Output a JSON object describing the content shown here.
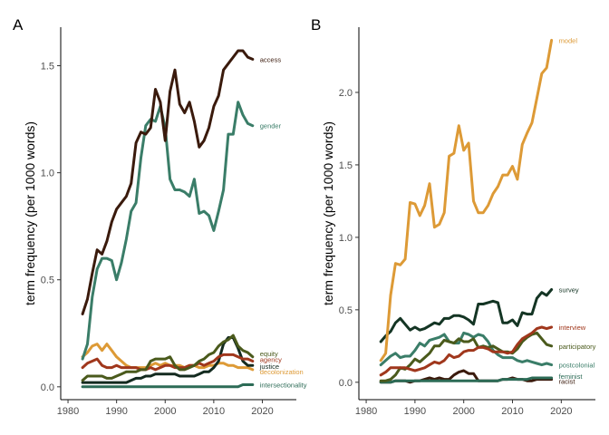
{
  "chart_data": [
    {
      "type": "line",
      "panel_label": "A",
      "xlabel": "",
      "ylabel": "term frequency (per 1000 words)",
      "xlim": [
        1978.5,
        2027
      ],
      "ylim": [
        -0.06,
        1.68
      ],
      "x_ticks": [
        1980,
        1990,
        2000,
        2010,
        2020
      ],
      "y_ticks": [
        0.0,
        0.5,
        1.0,
        1.5
      ],
      "y_tick_labels": [
        "0.0",
        "0.5",
        "1.0",
        "1.5"
      ],
      "grid": false,
      "legend": "direct labels at line ends",
      "x": [
        1983,
        1984,
        1985,
        1986,
        1987,
        1988,
        1989,
        1990,
        1991,
        1992,
        1993,
        1994,
        1995,
        1996,
        1997,
        1998,
        1999,
        2000,
        2001,
        2002,
        2003,
        2004,
        2005,
        2006,
        2007,
        2008,
        2009,
        2010,
        2011,
        2012,
        2013,
        2014,
        2015,
        2016,
        2017,
        2018
      ],
      "series": [
        {
          "name": "access",
          "color": "#3a1a0c",
          "values": [
            0.34,
            0.41,
            0.53,
            0.64,
            0.62,
            0.68,
            0.77,
            0.83,
            0.86,
            0.89,
            0.95,
            1.14,
            1.19,
            1.18,
            1.21,
            1.39,
            1.33,
            1.15,
            1.38,
            1.48,
            1.32,
            1.28,
            1.33,
            1.24,
            1.12,
            1.15,
            1.21,
            1.31,
            1.36,
            1.48,
            1.51,
            1.54,
            1.57,
            1.57,
            1.54,
            1.53
          ]
        },
        {
          "name": "gender",
          "color": "#3a7d68",
          "values": [
            0.13,
            0.2,
            0.42,
            0.55,
            0.6,
            0.6,
            0.59,
            0.5,
            0.58,
            0.69,
            0.82,
            0.86,
            1.07,
            1.22,
            1.25,
            1.24,
            1.31,
            1.21,
            0.97,
            0.92,
            0.92,
            0.91,
            0.89,
            0.97,
            0.81,
            0.82,
            0.8,
            0.73,
            0.82,
            0.92,
            1.18,
            1.18,
            1.33,
            1.27,
            1.23,
            1.22
          ]
        },
        {
          "name": "equity",
          "color": "#4a5a1c",
          "values": [
            0.03,
            0.05,
            0.05,
            0.05,
            0.05,
            0.04,
            0.04,
            0.05,
            0.06,
            0.07,
            0.07,
            0.07,
            0.08,
            0.08,
            0.12,
            0.13,
            0.13,
            0.13,
            0.14,
            0.1,
            0.08,
            0.08,
            0.09,
            0.1,
            0.12,
            0.13,
            0.15,
            0.16,
            0.19,
            0.21,
            0.22,
            0.24,
            0.19,
            0.17,
            0.16,
            0.14
          ]
        },
        {
          "name": "agency",
          "color": "#a0371c",
          "values": [
            0.09,
            0.11,
            0.12,
            0.13,
            0.1,
            0.09,
            0.09,
            0.1,
            0.09,
            0.09,
            0.09,
            0.09,
            0.08,
            0.08,
            0.09,
            0.08,
            0.09,
            0.1,
            0.1,
            0.09,
            0.09,
            0.09,
            0.1,
            0.1,
            0.11,
            0.1,
            0.11,
            0.12,
            0.14,
            0.15,
            0.15,
            0.15,
            0.14,
            0.13,
            0.13,
            0.12
          ]
        },
        {
          "name": "justice",
          "color": "#132a1f",
          "values": [
            0.02,
            0.02,
            0.02,
            0.02,
            0.02,
            0.02,
            0.02,
            0.02,
            0.02,
            0.02,
            0.03,
            0.04,
            0.04,
            0.05,
            0.05,
            0.06,
            0.06,
            0.06,
            0.06,
            0.06,
            0.05,
            0.05,
            0.05,
            0.05,
            0.06,
            0.07,
            0.07,
            0.09,
            0.12,
            0.2,
            0.23,
            0.23,
            0.18,
            0.12,
            0.1,
            0.1
          ]
        },
        {
          "name": "decolonization",
          "color": "#dd9a36",
          "values": [
            0.14,
            0.16,
            0.19,
            0.2,
            0.17,
            0.2,
            0.17,
            0.14,
            0.12,
            0.1,
            0.09,
            0.09,
            0.09,
            0.09,
            0.1,
            0.11,
            0.1,
            0.11,
            0.1,
            0.1,
            0.1,
            0.09,
            0.1,
            0.1,
            0.09,
            0.09,
            0.1,
            0.1,
            0.11,
            0.11,
            0.1,
            0.1,
            0.09,
            0.09,
            0.09,
            0.08
          ]
        },
        {
          "name": "intersectionality",
          "color": "#2c6b56",
          "values": [
            0.0,
            0.0,
            0.0,
            0.0,
            0.0,
            0.0,
            0.0,
            0.0,
            0.0,
            0.0,
            0.0,
            0.0,
            0.0,
            0.0,
            0.0,
            0.0,
            0.0,
            0.0,
            0.0,
            0.0,
            0.0,
            0.0,
            0.0,
            0.0,
            0.0,
            0.0,
            0.0,
            0.0,
            0.0,
            0.0,
            0.0,
            0.0,
            0.0,
            0.01,
            0.01,
            0.01
          ]
        }
      ]
    },
    {
      "type": "line",
      "panel_label": "B",
      "xlabel": "",
      "ylabel": "term frequency (per 1000 words)",
      "xlim": [
        1978.5,
        2027
      ],
      "ylim": [
        -0.12,
        2.45
      ],
      "x_ticks": [
        1980,
        1990,
        2000,
        2010,
        2020
      ],
      "y_ticks": [
        0.0,
        0.5,
        1.0,
        1.5,
        2.0
      ],
      "y_tick_labels": [
        "0.0",
        "0.5",
        "1.0",
        "1.5",
        "2.0"
      ],
      "grid": false,
      "legend": "direct labels at line ends",
      "x": [
        1983,
        1984,
        1985,
        1986,
        1987,
        1988,
        1989,
        1990,
        1991,
        1992,
        1993,
        1994,
        1995,
        1996,
        1997,
        1998,
        1999,
        2000,
        2001,
        2002,
        2003,
        2004,
        2005,
        2006,
        2007,
        2008,
        2009,
        2010,
        2011,
        2012,
        2013,
        2014,
        2015,
        2016,
        2017,
        2018
      ],
      "series": [
        {
          "name": "model",
          "color": "#dd9a36",
          "values": [
            0.15,
            0.2,
            0.6,
            0.82,
            0.81,
            0.85,
            1.24,
            1.23,
            1.15,
            1.22,
            1.37,
            1.07,
            1.09,
            1.17,
            1.56,
            1.58,
            1.77,
            1.6,
            1.65,
            1.25,
            1.17,
            1.17,
            1.22,
            1.3,
            1.35,
            1.43,
            1.43,
            1.49,
            1.4,
            1.64,
            1.72,
            1.79,
            1.96,
            2.13,
            2.17,
            2.36
          ]
        },
        {
          "name": "survey",
          "color": "#143524",
          "values": [
            0.28,
            0.32,
            0.35,
            0.41,
            0.44,
            0.4,
            0.36,
            0.38,
            0.36,
            0.37,
            0.39,
            0.41,
            0.4,
            0.44,
            0.44,
            0.46,
            0.46,
            0.45,
            0.43,
            0.4,
            0.54,
            0.54,
            0.55,
            0.56,
            0.55,
            0.41,
            0.41,
            0.43,
            0.39,
            0.48,
            0.47,
            0.47,
            0.58,
            0.62,
            0.6,
            0.64
          ]
        },
        {
          "name": "interview",
          "color": "#a0371c",
          "values": [
            0.05,
            0.07,
            0.1,
            0.1,
            0.1,
            0.1,
            0.09,
            0.08,
            0.09,
            0.1,
            0.12,
            0.14,
            0.13,
            0.15,
            0.19,
            0.17,
            0.18,
            0.21,
            0.22,
            0.22,
            0.24,
            0.24,
            0.23,
            0.21,
            0.21,
            0.21,
            0.2,
            0.21,
            0.26,
            0.3,
            0.32,
            0.34,
            0.37,
            0.38,
            0.37,
            0.38
          ]
        },
        {
          "name": "participatory",
          "color": "#4a5a1c",
          "values": [
            0.01,
            0.01,
            0.02,
            0.05,
            0.1,
            0.09,
            0.12,
            0.16,
            0.14,
            0.17,
            0.2,
            0.25,
            0.25,
            0.29,
            0.28,
            0.27,
            0.3,
            0.28,
            0.28,
            0.3,
            0.24,
            0.25,
            0.24,
            0.25,
            0.23,
            0.21,
            0.21,
            0.2,
            0.23,
            0.28,
            0.31,
            0.33,
            0.34,
            0.3,
            0.26,
            0.25
          ]
        },
        {
          "name": "postcolonial",
          "color": "#3a7d68",
          "values": [
            0.12,
            0.15,
            0.18,
            0.2,
            0.17,
            0.18,
            0.18,
            0.22,
            0.27,
            0.25,
            0.29,
            0.3,
            0.31,
            0.33,
            0.28,
            0.27,
            0.27,
            0.34,
            0.33,
            0.31,
            0.33,
            0.32,
            0.28,
            0.22,
            0.19,
            0.17,
            0.17,
            0.17,
            0.15,
            0.14,
            0.15,
            0.14,
            0.13,
            0.12,
            0.13,
            0.12
          ]
        },
        {
          "name": "feminist",
          "color": "#2c6b56",
          "values": [
            0.0,
            0.0,
            0.0,
            0.01,
            0.01,
            0.01,
            0.01,
            0.01,
            0.01,
            0.01,
            0.01,
            0.01,
            0.01,
            0.01,
            0.01,
            0.01,
            0.01,
            0.01,
            0.01,
            0.01,
            0.01,
            0.01,
            0.01,
            0.01,
            0.01,
            0.02,
            0.02,
            0.02,
            0.02,
            0.02,
            0.02,
            0.03,
            0.03,
            0.03,
            0.03,
            0.03
          ]
        },
        {
          "name": "racist",
          "color": "#3a1a0c",
          "values": [
            0.0,
            0.0,
            0.0,
            0.01,
            0.01,
            0.01,
            0.0,
            0.01,
            0.01,
            0.02,
            0.03,
            0.02,
            0.03,
            0.02,
            0.02,
            0.05,
            0.07,
            0.08,
            0.06,
            0.06,
            0.01,
            0.01,
            0.01,
            0.01,
            0.01,
            0.02,
            0.02,
            0.03,
            0.02,
            0.02,
            0.01,
            0.01,
            0.02,
            0.02,
            0.02,
            0.02
          ]
        }
      ]
    }
  ]
}
